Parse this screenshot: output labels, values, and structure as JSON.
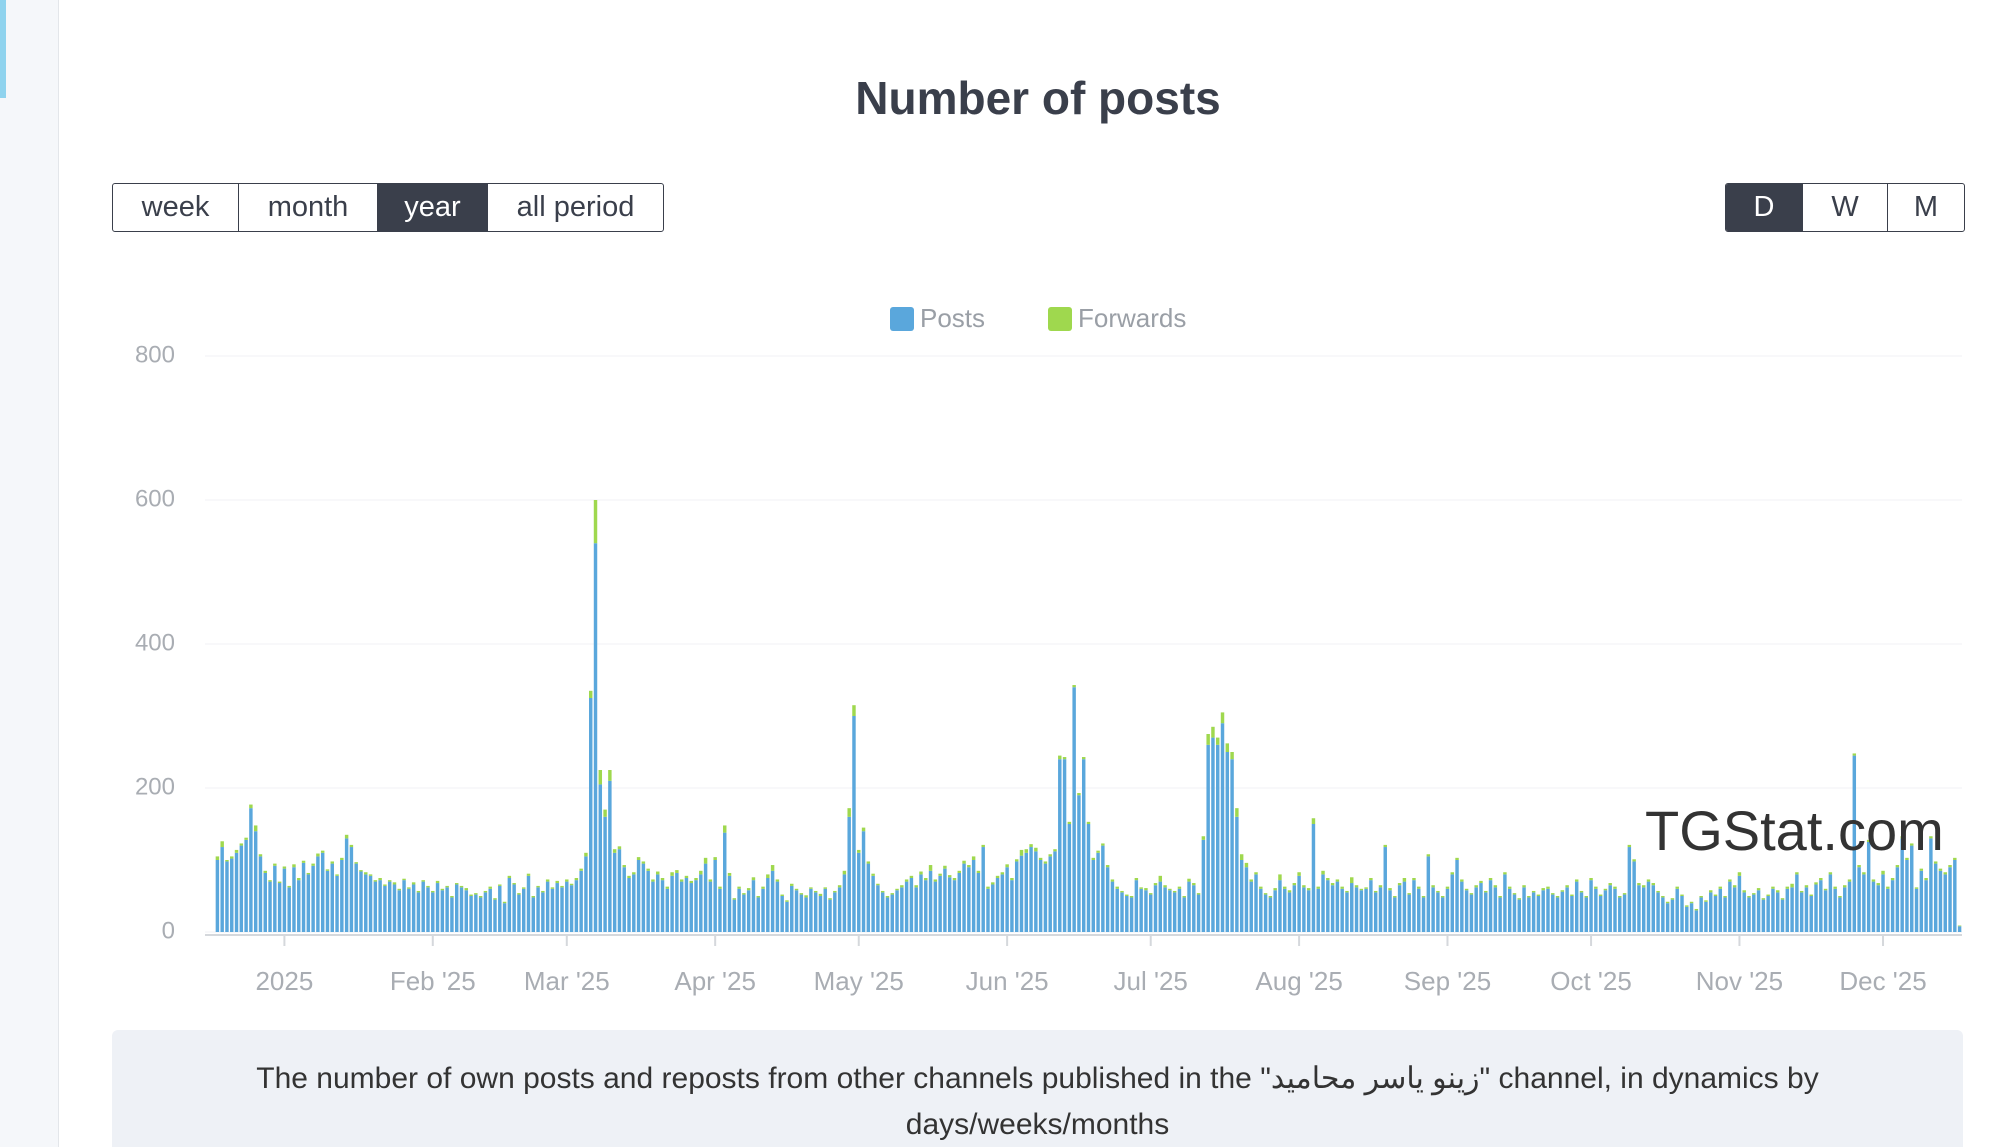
{
  "chart_data": {
    "type": "bar",
    "stacked": true,
    "title": "Number of posts",
    "grid": true,
    "legend": "top",
    "ylim": [
      0,
      800
    ],
    "yticks": [
      0,
      200,
      400,
      600,
      800
    ],
    "categories": [
      null,
      null,
      null,
      null,
      null,
      null,
      null,
      null,
      null,
      null,
      null,
      null,
      null,
      null,
      "2025",
      null,
      null,
      null,
      null,
      null,
      null,
      null,
      null,
      null,
      null,
      null,
      null,
      null,
      null,
      null,
      null,
      null,
      null,
      null,
      null,
      null,
      null,
      null,
      null,
      null,
      null,
      null,
      null,
      null,
      null,
      "Feb '25",
      null,
      null,
      null,
      null,
      null,
      null,
      null,
      null,
      null,
      null,
      null,
      null,
      null,
      null,
      null,
      null,
      null,
      null,
      null,
      null,
      null,
      null,
      null,
      null,
      null,
      null,
      null,
      "Mar '25",
      null,
      null,
      null,
      null,
      null,
      null,
      null,
      null,
      null,
      null,
      null,
      null,
      null,
      null,
      null,
      null,
      null,
      null,
      null,
      null,
      null,
      null,
      null,
      null,
      null,
      null,
      null,
      null,
      null,
      null,
      "Apr '25",
      null,
      null,
      null,
      null,
      null,
      null,
      null,
      null,
      null,
      null,
      null,
      null,
      null,
      null,
      null,
      null,
      null,
      null,
      null,
      null,
      null,
      null,
      null,
      null,
      null,
      null,
      null,
      null,
      null,
      "May '25",
      null,
      null,
      null,
      null,
      null,
      null,
      null,
      null,
      null,
      null,
      null,
      null,
      null,
      null,
      null,
      null,
      null,
      null,
      null,
      null,
      null,
      null,
      null,
      null,
      null,
      null,
      null,
      null,
      null,
      null,
      "Jun '25",
      null,
      null,
      null,
      null,
      null,
      null,
      null,
      null,
      null,
      null,
      null,
      null,
      null,
      null,
      null,
      null,
      null,
      null,
      null,
      null,
      null,
      null,
      null,
      null,
      null,
      null,
      null,
      null,
      null,
      "Jul '25",
      null,
      null,
      null,
      null,
      null,
      null,
      null,
      null,
      null,
      null,
      null,
      null,
      null,
      null,
      null,
      null,
      null,
      null,
      null,
      null,
      null,
      null,
      null,
      null,
      null,
      null,
      null,
      null,
      null,
      null,
      "Aug '25",
      null,
      null,
      null,
      null,
      null,
      null,
      null,
      null,
      null,
      null,
      null,
      null,
      null,
      null,
      null,
      null,
      null,
      null,
      null,
      null,
      null,
      null,
      null,
      null,
      null,
      null,
      null,
      null,
      null,
      null,
      "Sep '25",
      null,
      null,
      null,
      null,
      null,
      null,
      null,
      null,
      null,
      null,
      null,
      null,
      null,
      null,
      null,
      null,
      null,
      null,
      null,
      null,
      null,
      null,
      null,
      null,
      null,
      null,
      null,
      null,
      null,
      "Oct '25",
      null,
      null,
      null,
      null,
      null,
      null,
      null,
      null,
      null,
      null,
      null,
      null,
      null,
      null,
      null,
      null,
      null,
      null,
      null,
      null,
      null,
      null,
      null,
      null,
      null,
      null,
      null,
      null,
      null,
      null,
      "Nov '25",
      null,
      null,
      null,
      null,
      null,
      null,
      null,
      null,
      null,
      null,
      null,
      null,
      null,
      null,
      null,
      null,
      null,
      null,
      null,
      null,
      null,
      null,
      null,
      null,
      null,
      null,
      null,
      null,
      null,
      "Dec '25",
      null,
      null,
      null,
      null,
      null,
      null,
      null,
      null,
      null,
      null,
      null,
      null,
      null,
      null,
      null,
      null
    ],
    "series": [
      {
        "name": "Posts",
        "color": "#5aa7dc",
        "values": [
          100,
          118,
          98,
          102,
          110,
          120,
          128,
          172,
          140,
          105,
          82,
          70,
          92,
          68,
          88,
          62,
          90,
          72,
          96,
          80,
          92,
          105,
          110,
          85,
          95,
          78,
          100,
          130,
          118,
          95,
          84,
          80,
          78,
          70,
          72,
          64,
          70,
          66,
          58,
          72,
          60,
          66,
          55,
          70,
          62,
          55,
          68,
          58,
          62,
          48,
          66,
          62,
          58,
          50,
          52,
          48,
          55,
          60,
          45,
          64,
          40,
          75,
          66,
          52,
          60,
          78,
          48,
          62,
          55,
          70,
          60,
          68,
          62,
          70,
          65,
          72,
          85,
          105,
          325,
          540,
          205,
          160,
          210,
          110,
          115,
          90,
          75,
          80,
          100,
          95,
          85,
          70,
          80,
          72,
          60,
          78,
          82,
          70,
          75,
          68,
          72,
          80,
          95,
          70,
          100,
          60,
          138,
          78,
          45,
          60,
          52,
          58,
          72,
          48,
          60,
          75,
          85,
          70,
          50,
          42,
          64,
          58,
          52,
          48,
          60,
          55,
          50,
          60,
          45,
          55,
          62,
          80,
          160,
          300,
          110,
          140,
          95,
          78,
          65,
          55,
          48,
          52,
          58,
          62,
          70,
          75,
          62,
          80,
          72,
          85,
          70,
          78,
          88,
          76,
          72,
          82,
          95,
          90,
          100,
          82,
          118,
          60,
          66,
          75,
          80,
          90,
          72,
          98,
          106,
          110,
          118,
          112,
          100,
          95,
          105,
          112,
          240,
          240,
          150,
          340,
          190,
          240,
          150,
          100,
          110,
          120,
          90,
          70,
          60,
          55,
          50,
          48,
          72,
          60,
          58,
          52,
          65,
          70,
          62,
          58,
          55,
          60,
          48,
          70,
          65,
          52,
          128,
          260,
          270,
          260,
          290,
          250,
          240,
          160,
          100,
          90,
          70,
          80,
          60,
          52,
          48,
          58,
          72,
          60,
          55,
          65,
          78,
          62,
          58,
          150,
          60,
          80,
          72,
          65,
          70,
          60,
          55,
          68,
          62,
          58,
          60,
          72,
          55,
          62,
          118,
          58,
          48,
          65,
          70,
          52,
          72,
          60,
          48,
          105,
          62,
          55,
          48,
          60,
          80,
          100,
          70,
          58,
          52,
          62,
          68,
          55,
          72,
          62,
          48,
          80,
          60,
          52,
          45,
          62,
          48,
          55,
          50,
          58,
          60,
          52,
          48,
          56,
          62,
          50,
          70,
          55,
          48,
          72,
          60,
          50,
          58,
          65,
          60,
          48,
          52,
          118,
          98,
          65,
          62,
          70,
          65,
          55,
          48,
          40,
          45,
          60,
          50,
          35,
          40,
          30,
          48,
          42,
          55,
          50,
          60,
          48,
          70,
          62,
          78,
          55,
          48,
          52,
          58,
          45,
          50,
          60,
          55,
          45,
          60,
          62,
          80,
          55,
          62,
          50,
          66,
          72,
          58,
          80,
          60,
          48,
          62,
          70,
          245,
          90,
          80,
          125,
          70,
          65,
          80,
          60,
          72,
          90,
          130,
          100,
          120,
          60,
          85,
          72,
          130,
          95,
          85,
          80,
          90,
          100,
          8
        ]
      },
      {
        "name": "Forwards",
        "color": "#9fd84e",
        "values": [
          5,
          8,
          2,
          3,
          4,
          3,
          3,
          5,
          8,
          3,
          3,
          2,
          3,
          2,
          3,
          2,
          4,
          3,
          3,
          2,
          3,
          4,
          3,
          2,
          3,
          2,
          3,
          5,
          3,
          2,
          2,
          3,
          2,
          2,
          3,
          2,
          2,
          3,
          2,
          2,
          2,
          3,
          2,
          2,
          2,
          2,
          3,
          2,
          2,
          2,
          2,
          2,
          3,
          2,
          2,
          2,
          2,
          3,
          2,
          2,
          2,
          3,
          2,
          2,
          2,
          3,
          2,
          2,
          2,
          3,
          2,
          3,
          2,
          3,
          2,
          3,
          3,
          5,
          10,
          60,
          20,
          10,
          15,
          5,
          4,
          3,
          3,
          3,
          4,
          3,
          3,
          3,
          4,
          3,
          3,
          5,
          4,
          3,
          3,
          3,
          3,
          5,
          8,
          3,
          4,
          3,
          10,
          4,
          2,
          3,
          2,
          3,
          4,
          2,
          3,
          5,
          8,
          3,
          2,
          2,
          3,
          2,
          2,
          3,
          2,
          2,
          3,
          2,
          2,
          2,
          3,
          5,
          12,
          15,
          4,
          5,
          3,
          3,
          2,
          2,
          2,
          2,
          2,
          3,
          3,
          3,
          3,
          4,
          3,
          8,
          3,
          3,
          4,
          3,
          3,
          3,
          4,
          3,
          5,
          3,
          3,
          3,
          3,
          3,
          3,
          4,
          3,
          3,
          8,
          5,
          4,
          5,
          3,
          3,
          3,
          3,
          5,
          3,
          3,
          3,
          3,
          3,
          3,
          3,
          3,
          3,
          3,
          3,
          3,
          2,
          2,
          2,
          3,
          2,
          3,
          2,
          3,
          8,
          3,
          2,
          2,
          3,
          2,
          4,
          3,
          2,
          5,
          15,
          15,
          10,
          15,
          12,
          10,
          12,
          8,
          6,
          3,
          3,
          3,
          2,
          2,
          3,
          8,
          3,
          3,
          3,
          5,
          3,
          3,
          8,
          3,
          5,
          3,
          3,
          3,
          3,
          2,
          8,
          3,
          2,
          2,
          3,
          2,
          3,
          3,
          3,
          2,
          3,
          5,
          2,
          3,
          3,
          2,
          3,
          3,
          2,
          2,
          3,
          3,
          3,
          3,
          2,
          2,
          3,
          3,
          2,
          3,
          3,
          2,
          3,
          3,
          2,
          2,
          3,
          2,
          2,
          2,
          3,
          3,
          2,
          2,
          2,
          3,
          2,
          3,
          2,
          2,
          3,
          3,
          2,
          2,
          3,
          3,
          2,
          2,
          3,
          3,
          3,
          3,
          3,
          3,
          2,
          2,
          2,
          2,
          3,
          2,
          2,
          2,
          2,
          2,
          2,
          3,
          2,
          3,
          2,
          3,
          3,
          5,
          3,
          2,
          2,
          3,
          2,
          2,
          3,
          3,
          2,
          3,
          5,
          3,
          2,
          3,
          2,
          3,
          3,
          2,
          3,
          3,
          2,
          3,
          3,
          3,
          3,
          3,
          3,
          3,
          3,
          5,
          3,
          3,
          3,
          3,
          3,
          3,
          2,
          3,
          3,
          3,
          3,
          3,
          3,
          3,
          3,
          1
        ]
      }
    ]
  },
  "period_buttons": [
    "week",
    "month",
    "year",
    "all period"
  ],
  "active_period_index": 2,
  "scale_buttons": [
    "D",
    "W",
    "M"
  ],
  "active_scale_index": 0,
  "watermark": "TGStat.com",
  "description": "The number of own posts and reposts from other channels published in the \"زينو ياسر محاميد\" channel, in dynamics by days/weeks/months"
}
